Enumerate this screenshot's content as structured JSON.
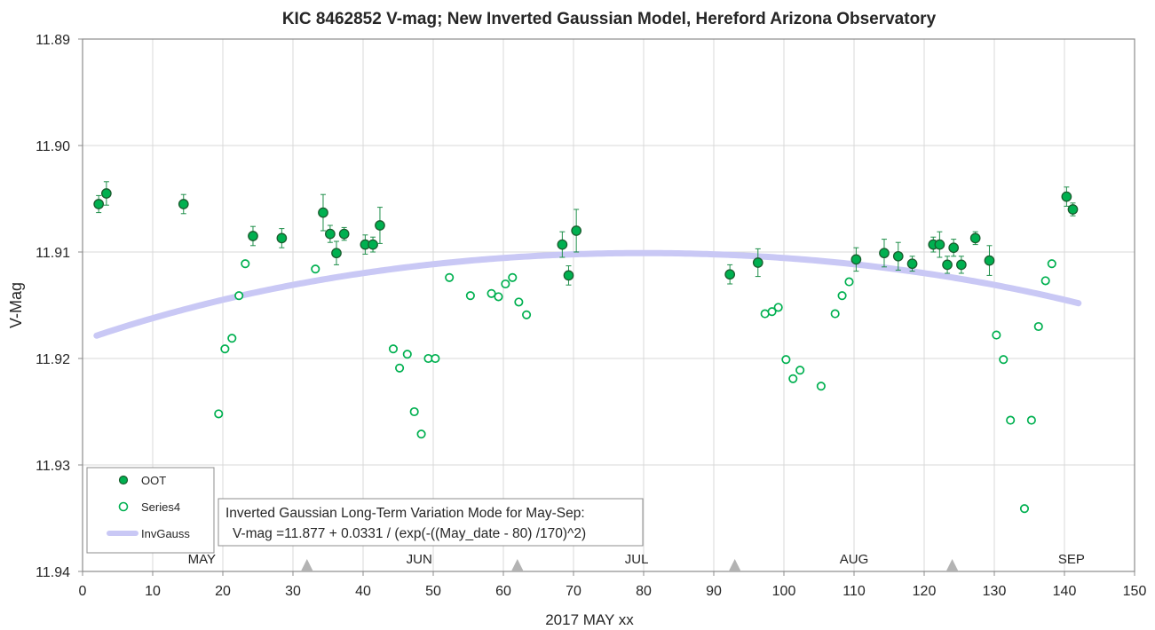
{
  "chart_data": {
    "type": "scatter",
    "title": "KIC 8462852 V-mag; New Inverted Gaussian Model, Hereford Arizona Observatory",
    "xlabel": "2017 MAY xx",
    "ylabel": "V-Mag",
    "xlim": [
      0,
      150
    ],
    "ylim": [
      11.89,
      11.94
    ],
    "y_reversed": true,
    "grid": true,
    "x_ticks": [
      "0",
      "10",
      "20",
      "30",
      "40",
      "50",
      "60",
      "70",
      "80",
      "90",
      "100",
      "110",
      "120",
      "130",
      "140",
      "150"
    ],
    "y_ticks": [
      "11.89",
      "11.90",
      "11.91",
      "11.92",
      "11.93",
      "11.94"
    ],
    "month_labels": [
      {
        "text": "MAY",
        "x": 17
      },
      {
        "text": "JUN",
        "x": 48
      },
      {
        "text": "JUL",
        "x": 79
      },
      {
        "text": "AUG",
        "x": 110
      },
      {
        "text": "SEP",
        "x": 141
      }
    ],
    "month_markers": [
      32,
      62,
      93,
      124
    ],
    "legend": {
      "placement": "bottom-left",
      "entries": [
        "OOT",
        "Series4",
        "InvGauss"
      ]
    },
    "annotation": {
      "line1": "Inverted Gaussian Long-Term Variation Mode for May-Sep:",
      "line2": "V-mag =11.877 + 0.0331 / (exp(-((May_date - 80) /170)^2)"
    },
    "model": {
      "offset": 11.877,
      "amplitude": 0.0331,
      "center": 80,
      "width": 170,
      "x_range": [
        2,
        142
      ]
    },
    "series": [
      {
        "name": "OOT",
        "color": "#00b050",
        "edge": "#1a5c2e",
        "points": [
          {
            "x": 2.3,
            "y": 11.9055,
            "err": 0.0008
          },
          {
            "x": 3.4,
            "y": 11.9045,
            "err": 0.0011
          },
          {
            "x": 14.4,
            "y": 11.9055,
            "err": 0.0009
          },
          {
            "x": 24.3,
            "y": 11.9085,
            "err": 0.0009
          },
          {
            "x": 28.4,
            "y": 11.9087,
            "err": 0.0009
          },
          {
            "x": 34.3,
            "y": 11.9063,
            "err": 0.0017
          },
          {
            "x": 35.3,
            "y": 11.9083,
            "err": 0.0008
          },
          {
            "x": 36.2,
            "y": 11.9101,
            "err": 0.0011
          },
          {
            "x": 37.3,
            "y": 11.9083,
            "err": 0.0006
          },
          {
            "x": 40.3,
            "y": 11.9093,
            "err": 0.0009
          },
          {
            "x": 41.4,
            "y": 11.9093,
            "err": 0.0007
          },
          {
            "x": 42.4,
            "y": 11.9075,
            "err": 0.0017
          },
          {
            "x": 68.4,
            "y": 11.9093,
            "err": 0.0012
          },
          {
            "x": 69.3,
            "y": 11.9122,
            "err": 0.0009
          },
          {
            "x": 70.4,
            "y": 11.908,
            "err": 0.002
          },
          {
            "x": 92.3,
            "y": 11.9121,
            "err": 0.0009
          },
          {
            "x": 96.3,
            "y": 11.911,
            "err": 0.0013
          },
          {
            "x": 110.3,
            "y": 11.9107,
            "err": 0.0011
          },
          {
            "x": 114.3,
            "y": 11.9101,
            "err": 0.0013
          },
          {
            "x": 116.3,
            "y": 11.9104,
            "err": 0.0013
          },
          {
            "x": 118.3,
            "y": 11.9111,
            "err": 0.0007
          },
          {
            "x": 121.3,
            "y": 11.9093,
            "err": 0.0007
          },
          {
            "x": 122.2,
            "y": 11.9093,
            "err": 0.0012
          },
          {
            "x": 123.3,
            "y": 11.9112,
            "err": 0.0008
          },
          {
            "x": 124.2,
            "y": 11.9096,
            "err": 0.0008
          },
          {
            "x": 125.3,
            "y": 11.9112,
            "err": 0.0008
          },
          {
            "x": 127.3,
            "y": 11.9087,
            "err": 0.0006
          },
          {
            "x": 129.3,
            "y": 11.9108,
            "err": 0.0014
          },
          {
            "x": 140.3,
            "y": 11.9048,
            "err": 0.0009
          },
          {
            "x": 141.2,
            "y": 11.906,
            "err": 0.0006
          }
        ]
      },
      {
        "name": "Series4",
        "color": "#00b050",
        "points": [
          {
            "x": 19.4,
            "y": 11.9252
          },
          {
            "x": 20.3,
            "y": 11.9191
          },
          {
            "x": 21.3,
            "y": 11.9181
          },
          {
            "x": 22.3,
            "y": 11.9141
          },
          {
            "x": 23.2,
            "y": 11.9111
          },
          {
            "x": 33.2,
            "y": 11.9116
          },
          {
            "x": 44.3,
            "y": 11.9191
          },
          {
            "x": 45.2,
            "y": 11.9209
          },
          {
            "x": 46.3,
            "y": 11.9196
          },
          {
            "x": 47.3,
            "y": 11.925
          },
          {
            "x": 48.3,
            "y": 11.9271
          },
          {
            "x": 49.3,
            "y": 11.92
          },
          {
            "x": 50.3,
            "y": 11.92
          },
          {
            "x": 52.3,
            "y": 11.9124
          },
          {
            "x": 55.3,
            "y": 11.9141
          },
          {
            "x": 58.3,
            "y": 11.9139
          },
          {
            "x": 59.3,
            "y": 11.9142
          },
          {
            "x": 60.3,
            "y": 11.913
          },
          {
            "x": 61.3,
            "y": 11.9124
          },
          {
            "x": 62.2,
            "y": 11.9147
          },
          {
            "x": 63.3,
            "y": 11.9159
          },
          {
            "x": 97.3,
            "y": 11.9158
          },
          {
            "x": 98.3,
            "y": 11.9156
          },
          {
            "x": 99.2,
            "y": 11.9152
          },
          {
            "x": 100.3,
            "y": 11.9201
          },
          {
            "x": 101.3,
            "y": 11.9219
          },
          {
            "x": 102.3,
            "y": 11.9211
          },
          {
            "x": 105.3,
            "y": 11.9226
          },
          {
            "x": 107.3,
            "y": 11.9158
          },
          {
            "x": 108.3,
            "y": 11.9141
          },
          {
            "x": 109.3,
            "y": 11.9128
          },
          {
            "x": 130.3,
            "y": 11.9178
          },
          {
            "x": 131.3,
            "y": 11.9201
          },
          {
            "x": 132.3,
            "y": 11.9258
          },
          {
            "x": 134.3,
            "y": 11.9341
          },
          {
            "x": 135.3,
            "y": 11.9258
          },
          {
            "x": 136.3,
            "y": 11.917
          },
          {
            "x": 137.3,
            "y": 11.9127
          },
          {
            "x": 138.2,
            "y": 11.9111
          }
        ]
      },
      {
        "name": "InvGauss",
        "color": "#c9c8f5"
      }
    ]
  }
}
